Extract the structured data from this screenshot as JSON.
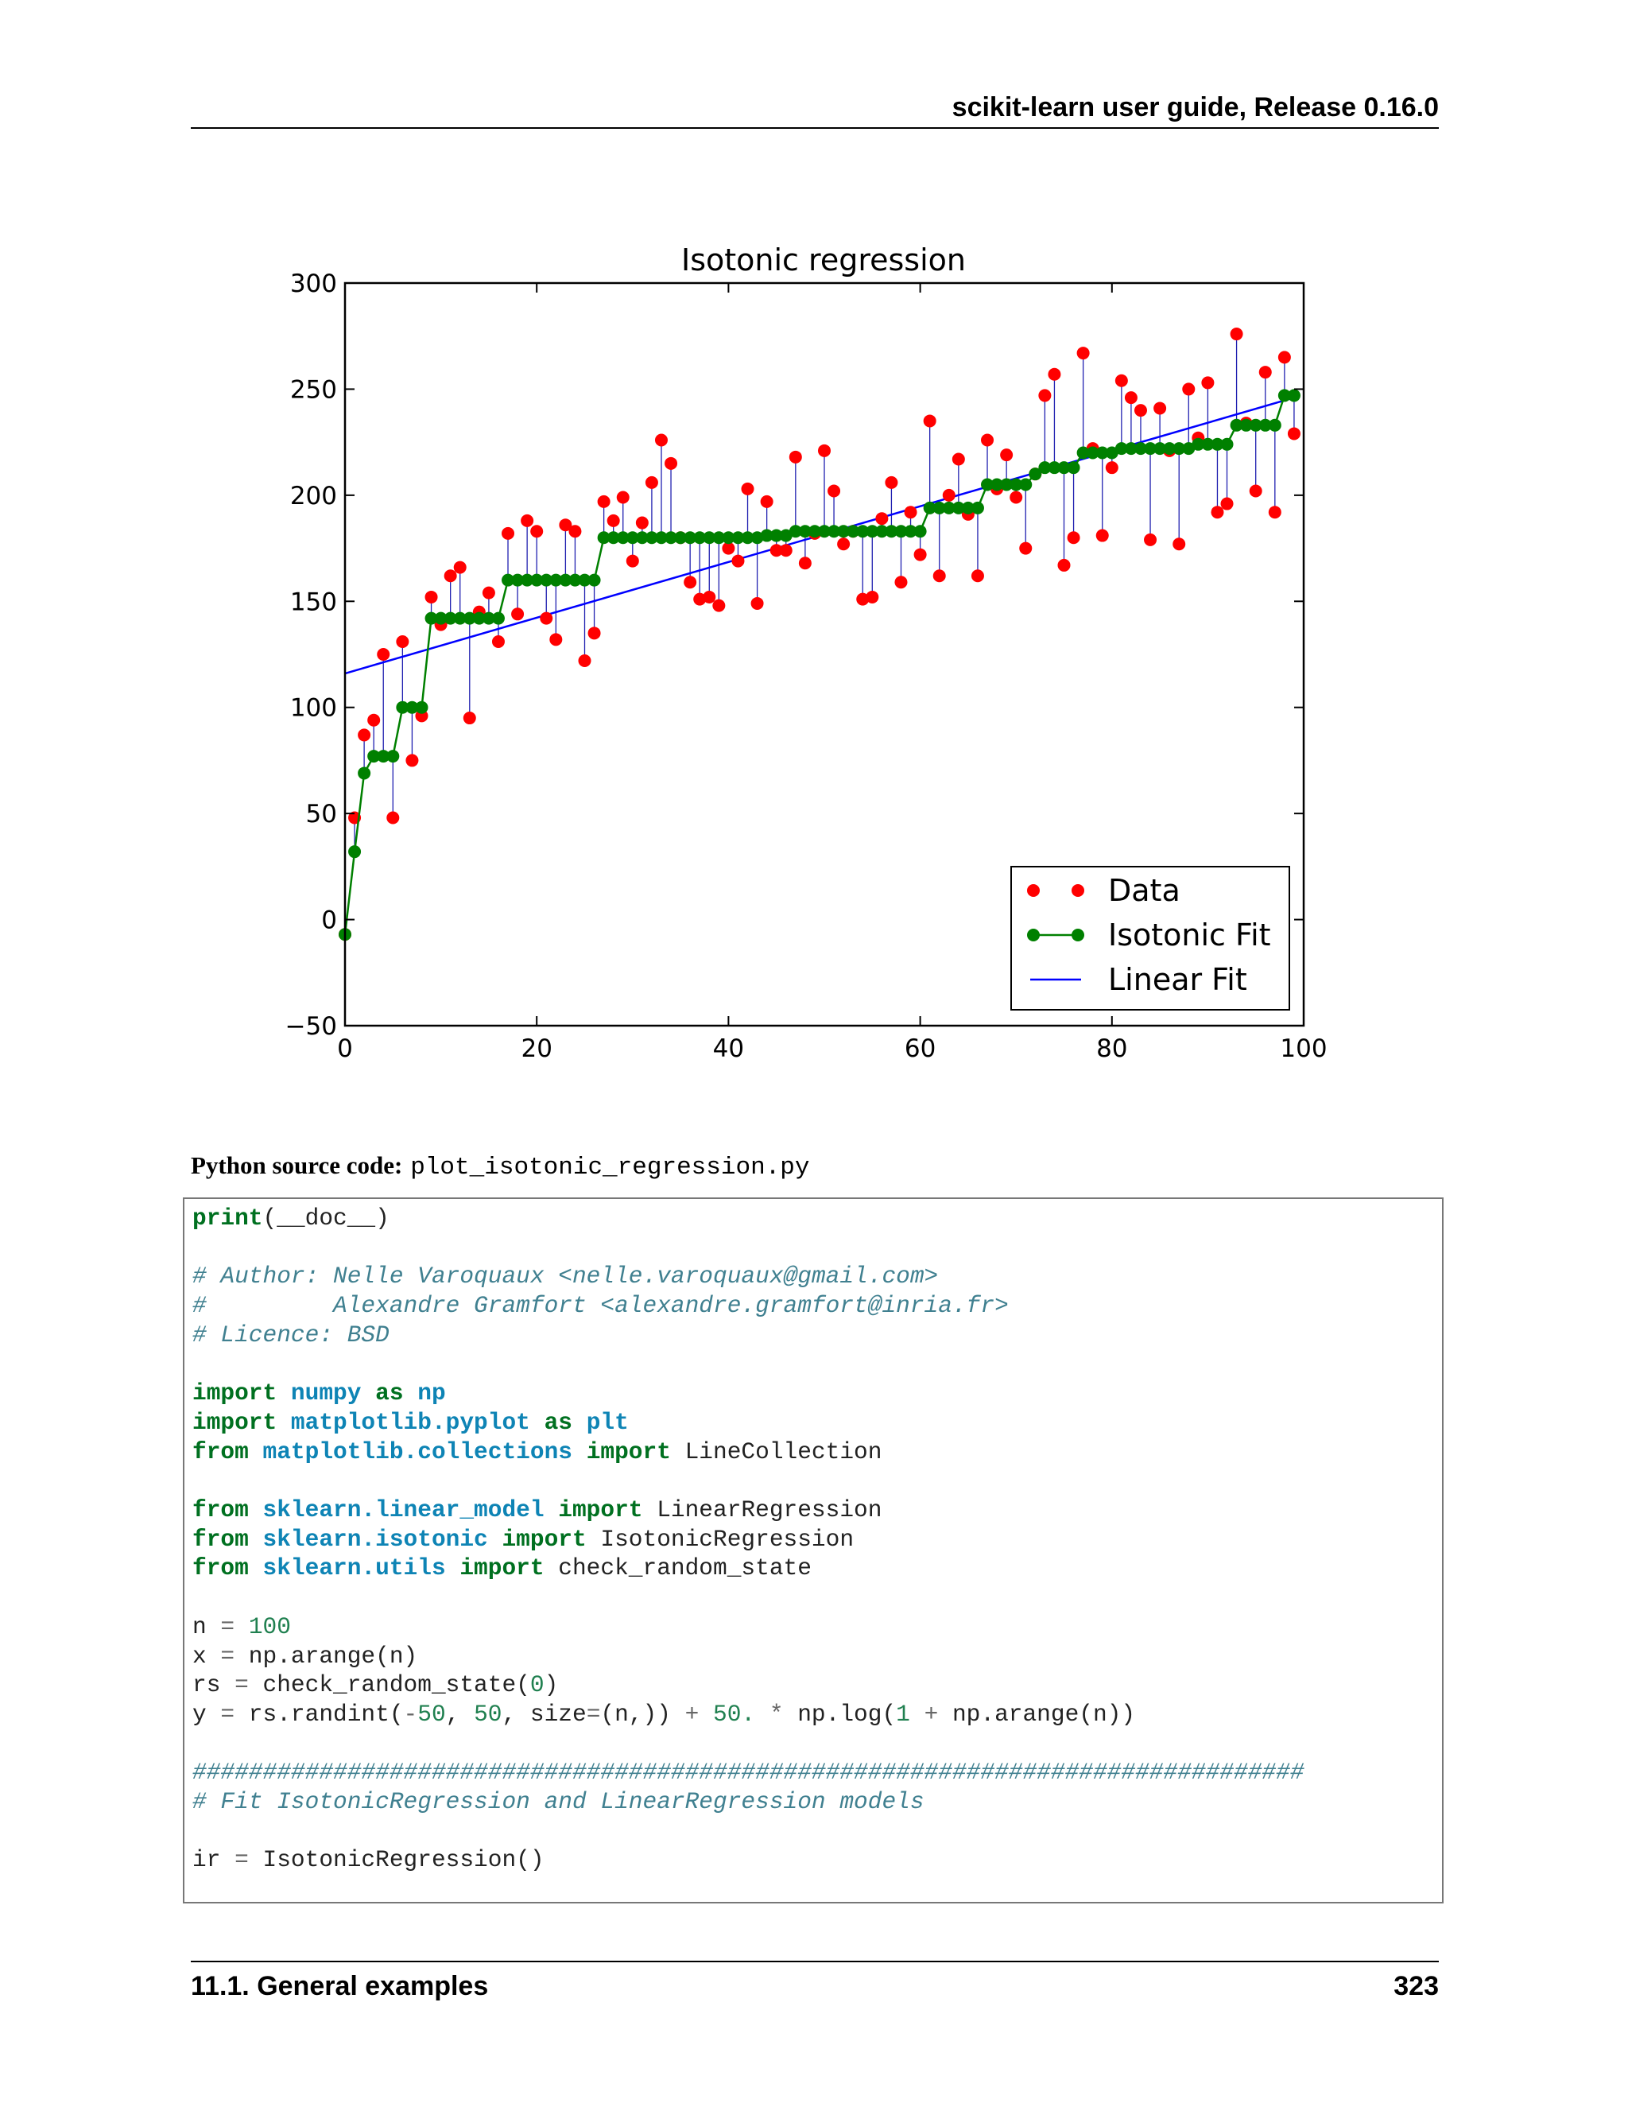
{
  "header": {
    "title": "scikit-learn user guide, Release 0.16.0"
  },
  "chart_data": {
    "type": "scatter",
    "title": "Isotonic regression",
    "xlim": [
      0,
      100
    ],
    "ylim": [
      -50,
      300
    ],
    "xticks": [
      0,
      20,
      40,
      60,
      80,
      100
    ],
    "yticks": [
      -50,
      0,
      50,
      100,
      150,
      200,
      250,
      300
    ],
    "grid": false,
    "legend_position": "lower-right",
    "legend": [
      "Data",
      "Isotonic Fit",
      "Linear Fit"
    ],
    "colors": {
      "data": "#ff0000",
      "isotonic": "#008000",
      "linear": "#0000ff",
      "segments": "#2020b0"
    },
    "data_y": [
      -7,
      48,
      87,
      94,
      125,
      48,
      131,
      75,
      96,
      152,
      139,
      162,
      166,
      95,
      145,
      154,
      131,
      182,
      144,
      188,
      183,
      142,
      132,
      186,
      183,
      122,
      135,
      197,
      188,
      199,
      169,
      187,
      206,
      226,
      215,
      180,
      159,
      151,
      152,
      148,
      175,
      169,
      203,
      149,
      197,
      174,
      174,
      218,
      168,
      182,
      221,
      202,
      177,
      183,
      151,
      152,
      189,
      206,
      159,
      192,
      172,
      235,
      162,
      200,
      217,
      191,
      162,
      226,
      203,
      219,
      199,
      175,
      210,
      247,
      257,
      167,
      180,
      267,
      222,
      181,
      213,
      254,
      246,
      240,
      179,
      241,
      221,
      177,
      250,
      227,
      253,
      192,
      196,
      276,
      234,
      202,
      258,
      192,
      265,
      229
    ],
    "isotonic_y": [
      -7,
      32,
      69,
      77,
      77,
      77,
      100,
      100,
      100,
      142,
      142,
      142,
      142,
      142,
      142,
      142,
      142,
      160,
      160,
      160,
      160,
      160,
      160,
      160,
      160,
      160,
      160,
      180,
      180,
      180,
      180,
      180,
      180,
      180,
      180,
      180,
      180,
      180,
      180,
      180,
      180,
      180,
      180,
      180,
      181,
      181,
      181,
      183,
      183,
      183,
      183,
      183,
      183,
      183,
      183,
      183,
      183,
      183,
      183,
      183,
      183,
      194,
      194,
      194,
      194,
      194,
      194,
      205,
      205,
      205,
      205,
      205,
      210,
      213,
      213,
      213,
      213,
      220,
      220,
      220,
      220,
      222,
      222,
      222,
      222,
      222,
      222,
      222,
      222,
      224,
      224,
      224,
      224,
      233,
      233,
      233,
      233,
      233,
      247,
      247
    ],
    "linear_fit": {
      "y_at_0": 116,
      "y_at_99": 246
    }
  },
  "source": {
    "label": "Python source code:",
    "file": "plot_isotonic_regression.py"
  },
  "footer": {
    "section": "11.1. General examples",
    "page": "323"
  }
}
